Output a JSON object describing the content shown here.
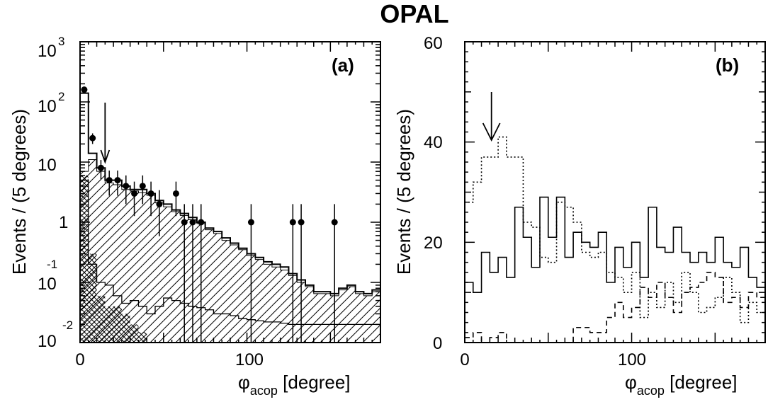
{
  "experiment_label": "OPAL",
  "chart_data": [
    {
      "type": "histogram",
      "panel_label": "(a)",
      "ylabel": "Events / (5 degrees)",
      "xlabel": {
        "symbol": "φ",
        "subscript": "acop",
        "rest": " [degree]"
      },
      "xlim": [
        0,
        180
      ],
      "ylim": [
        0.01,
        1000
      ],
      "yscale": "log",
      "bin_width_deg": 5,
      "x_ticks": [
        {
          "value": 0,
          "label": "0"
        },
        {
          "value": 100,
          "label": "100"
        }
      ],
      "y_ticks": [
        {
          "value": 1000,
          "base": "10",
          "exp": "3"
        },
        {
          "value": 100,
          "base": "10",
          "exp": "2"
        },
        {
          "value": 10,
          "base": "10",
          "exp": ""
        },
        {
          "value": 1,
          "base": "1",
          "exp": ""
        },
        {
          "value": 0.1,
          "base": "10",
          "exp": "-1"
        },
        {
          "value": 0.01,
          "base": "10",
          "exp": "-2"
        }
      ],
      "cut_arrow_x": 15,
      "series": [
        {
          "kind": "total_mc_outline",
          "values": [
            140,
            14,
            8,
            5,
            5,
            4,
            3.5,
            3.5,
            3,
            2.3,
            2,
            1.6,
            1.4,
            1.2,
            1.0,
            0.8,
            0.7,
            0.55,
            0.45,
            0.37,
            0.3,
            0.26,
            0.22,
            0.2,
            0.18,
            0.14,
            0.11,
            0.09,
            0.07,
            0.07,
            0.065,
            0.08,
            0.09,
            0.07,
            0.065,
            0.075
          ]
        },
        {
          "kind": "background_hatched",
          "values": [
            7,
            11,
            7,
            4.5,
            4.2,
            3.5,
            3.3,
            3.1,
            2.8,
            2.1,
            1.8,
            1.5,
            1.3,
            1.1,
            0.95,
            0.75,
            0.65,
            0.5,
            0.42,
            0.35,
            0.28,
            0.24,
            0.2,
            0.18,
            0.16,
            0.13,
            0.1,
            0.085,
            0.065,
            0.065,
            0.06,
            0.075,
            0.085,
            0.065,
            0.06,
            0.07
          ]
        },
        {
          "kind": "background_thin_outline",
          "values": [
            5,
            0.2,
            0.1,
            0.09,
            0.06,
            0.045,
            0.05,
            0.04,
            0.03,
            0.04,
            0.055,
            0.05,
            0.045,
            0.04,
            0.038,
            0.035,
            0.03,
            0.03,
            0.028,
            0.025,
            0.024,
            0.023,
            0.022,
            0.022,
            0.021,
            0.02,
            0.02,
            0.02,
            0.02,
            0.02,
            0.02,
            0.02,
            0.02,
            0.02,
            0.02,
            0.02
          ]
        },
        {
          "kind": "background_crosshatched",
          "values": [
            6,
            0.3,
            0.06,
            0.04,
            0.04,
            0.03,
            0.02,
            0.015,
            0.01,
            0.01,
            0.01,
            0.01,
            0.01,
            0.01,
            0.01,
            0.01,
            0.01,
            0.01,
            0.01,
            0.01,
            0.01,
            0.01,
            0.01,
            0.01,
            0.01,
            0.01,
            0.01,
            0.01,
            0.01,
            0.01,
            0.01,
            0.01,
            0.01,
            0.01,
            0.01,
            0.01
          ]
        },
        {
          "kind": "data_points",
          "x": [
            2.5,
            7.5,
            12.5,
            17.5,
            22.5,
            27.5,
            32.5,
            37.5,
            42.5,
            47.5,
            57.5,
            62.5,
            67.5,
            72.5,
            102.5,
            127.5,
            132.5,
            152.5
          ],
          "y": [
            160,
            25,
            8,
            5,
            5,
            4,
            3,
            4,
            3,
            2,
            3,
            1,
            1,
            1,
            1,
            1,
            1,
            1
          ]
        }
      ]
    },
    {
      "type": "histogram",
      "panel_label": "(b)",
      "ylabel": "Events / (5 degrees)",
      "xlabel": {
        "symbol": "φ",
        "subscript": "acop",
        "rest": " [degree]"
      },
      "xlim": [
        0,
        180
      ],
      "ylim": [
        0,
        60
      ],
      "bin_width_deg": 5,
      "x_ticks": [
        {
          "value": 0,
          "label": "0"
        },
        {
          "value": 100,
          "label": "100"
        }
      ],
      "y_ticks": [
        {
          "value": 0,
          "label": "0"
        },
        {
          "value": 20,
          "label": "20"
        },
        {
          "value": 40,
          "label": "40"
        },
        {
          "value": 60,
          "label": "60"
        }
      ],
      "cut_arrow_x": 16,
      "series": [
        {
          "kind": "solid",
          "values": [
            12,
            10,
            18,
            14,
            17,
            13,
            27,
            21,
            15,
            29,
            21,
            29,
            17,
            22,
            20,
            19,
            22,
            12,
            19,
            15,
            20,
            13,
            27,
            19,
            18,
            23,
            18,
            16,
            18,
            16,
            21,
            16,
            15,
            19,
            13,
            11
          ]
        },
        {
          "kind": "dotted",
          "values": [
            28,
            32,
            37,
            37,
            41,
            37,
            37,
            24,
            23,
            17,
            16,
            28,
            27,
            24,
            18,
            17,
            18,
            14,
            13,
            10,
            14,
            5,
            10,
            7,
            12,
            8,
            14,
            10,
            6,
            7,
            9,
            13,
            10,
            4,
            8,
            6
          ]
        },
        {
          "kind": "dashed",
          "values": [
            1,
            2,
            0,
            1,
            2,
            0,
            0,
            0,
            0,
            0,
            0,
            0,
            0,
            3,
            3,
            2,
            2,
            5,
            8,
            5,
            7,
            11,
            9,
            12,
            9,
            6,
            10,
            11,
            12,
            14,
            13,
            8,
            9,
            7,
            10,
            9
          ]
        }
      ]
    }
  ]
}
